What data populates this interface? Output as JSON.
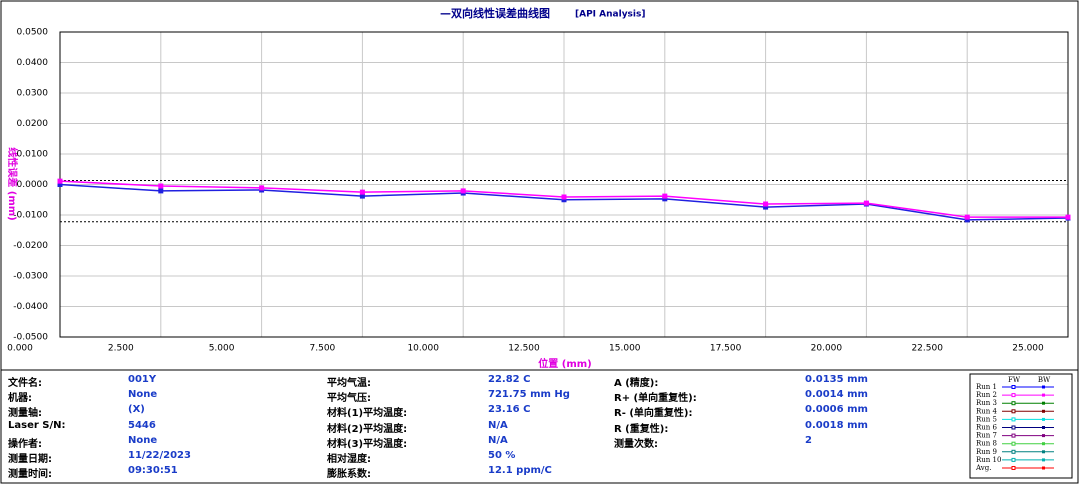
{
  "chart_data": {
    "type": "line",
    "title": "—双向线性误差曲线图",
    "subtitle": "[API Analysis]",
    "x_label": "位置 (mm)",
    "y_label": "线性误差 (mm)",
    "x": [
      0,
      2.5,
      5,
      7.5,
      10,
      12.5,
      15,
      17.5,
      20,
      22.5,
      25
    ],
    "series": [
      {
        "name": "Run 1",
        "color": "#2020e0",
        "values": [
          0.0,
          -0.0021,
          -0.0018,
          -0.0038,
          -0.0028,
          -0.005,
          -0.0047,
          -0.0074,
          -0.0064,
          -0.0116,
          -0.011
        ]
      },
      {
        "name": "Run 2",
        "color": "#ff00ff",
        "values": [
          0.0011,
          -0.0005,
          -0.0011,
          -0.0025,
          -0.0021,
          -0.0041,
          -0.0038,
          -0.0064,
          -0.0061,
          -0.0107,
          -0.0107
        ]
      }
    ],
    "reference_lines": [
      0.0013,
      -0.0122
    ],
    "xlim": [
      0,
      25
    ],
    "ylim": [
      -0.05,
      0.05
    ],
    "xticks": [
      {
        "value": 0,
        "label": "0.000"
      },
      {
        "value": 2.5,
        "label": "2.500"
      },
      {
        "value": 5,
        "label": "5.000"
      },
      {
        "value": 7.5,
        "label": "7.500"
      },
      {
        "value": 10,
        "label": "10.000"
      },
      {
        "value": 12.5,
        "label": "12.500"
      },
      {
        "value": 15,
        "label": "15.000"
      },
      {
        "value": 17.5,
        "label": "17.500"
      },
      {
        "value": 20,
        "label": "20.000"
      },
      {
        "value": 22.5,
        "label": "22.500"
      },
      {
        "value": 25,
        "label": "25.000"
      }
    ],
    "yticks": [
      {
        "value": 0.05,
        "label": "0.0500"
      },
      {
        "value": 0.04,
        "label": "0.0400"
      },
      {
        "value": 0.03,
        "label": "0.0300"
      },
      {
        "value": 0.02,
        "label": "0.0200"
      },
      {
        "value": 0.01,
        "label": "0.0100"
      },
      {
        "value": 0,
        "label": "0.0000"
      },
      {
        "value": -0.01,
        "label": "-0.0100"
      },
      {
        "value": -0.02,
        "label": "-0.0200"
      },
      {
        "value": -0.03,
        "label": "-0.0300"
      },
      {
        "value": -0.04,
        "label": "-0.0400"
      },
      {
        "value": -0.05,
        "label": "-0.0500"
      }
    ],
    "grid": true
  },
  "info": {
    "columns": [
      [
        [
          "文件名:",
          "001Y"
        ],
        [
          "机器:",
          "None"
        ],
        [
          "测量轴:",
          "(X)"
        ],
        [
          "Laser S/N:",
          "5446"
        ],
        [
          "操作者:",
          "None"
        ],
        [
          "测量日期:",
          "11/22/2023"
        ],
        [
          "测量时间:",
          "09:30:51"
        ]
      ],
      [
        [
          "平均气温:",
          "22.82 C"
        ],
        [
          "平均气压:",
          "721.75 mm Hg"
        ],
        [
          "材料(1)平均温度:",
          "23.16 C"
        ],
        [
          "材料(2)平均温度:",
          "N/A"
        ],
        [
          "材料(3)平均温度:",
          "N/A"
        ],
        [
          "相对湿度:",
          "50 %"
        ],
        [
          "膨胀系数:",
          "12.1 ppm/C"
        ]
      ],
      [
        [
          "A (精度):",
          "0.0135 mm"
        ],
        [
          "R+ (单向重复性):",
          "0.0014 mm"
        ],
        [
          "R- (单向重复性):",
          "0.0006 mm"
        ],
        [
          "R (重复性):",
          "0.0018 mm"
        ],
        [
          "测量次数:",
          "2"
        ]
      ]
    ]
  },
  "legend": {
    "headers": [
      "FW",
      "BW"
    ],
    "entries": [
      {
        "name": "Run 1",
        "color": "#0000ff"
      },
      {
        "name": "Run 2",
        "color": "#ff00ff"
      },
      {
        "name": "Run 3",
        "color": "#008000"
      },
      {
        "name": "Run 4",
        "color": "#800000"
      },
      {
        "name": "Run 5",
        "color": "#00e0e0"
      },
      {
        "name": "Run 6",
        "color": "#000080"
      },
      {
        "name": "Run 7",
        "color": "#800080"
      },
      {
        "name": "Run 8",
        "color": "#40d040"
      },
      {
        "name": "Run 9",
        "color": "#008080"
      },
      {
        "name": "Run 10",
        "color": "#00b0b0"
      },
      {
        "name": "Avg.",
        "color": "#ff0000"
      }
    ]
  }
}
